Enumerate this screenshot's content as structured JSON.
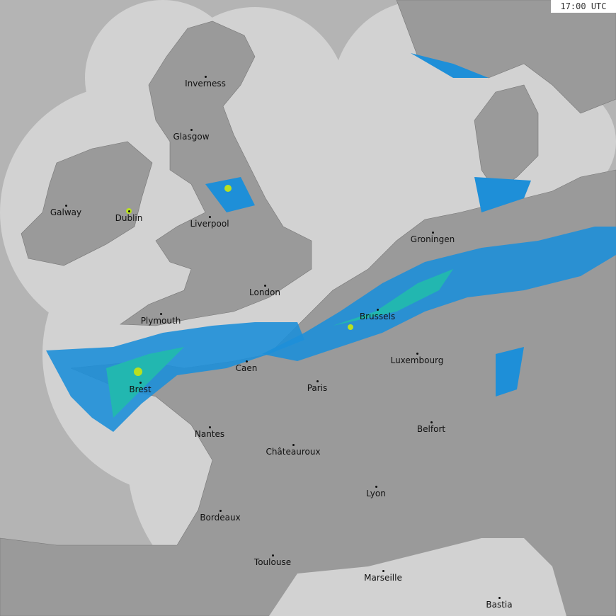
{
  "timestamp": "17:00 UTC",
  "colors": {
    "sea_in_coverage": "#d2d2d2",
    "sea_out_coverage": "#b4b4b4",
    "land": "#9a9a9a",
    "rain_light": "#1e8fd8",
    "rain_moderate": "#22b7b0",
    "rain_heavy": "#b8e020"
  },
  "cities": [
    {
      "name": "Inverness"
    },
    {
      "name": "Glasgow"
    },
    {
      "name": "Galway"
    },
    {
      "name": "Dublin"
    },
    {
      "name": "Liverpool"
    },
    {
      "name": "London"
    },
    {
      "name": "Plymouth"
    },
    {
      "name": "Groningen"
    },
    {
      "name": "Brussels"
    },
    {
      "name": "Caen"
    },
    {
      "name": "Brest"
    },
    {
      "name": "Paris"
    },
    {
      "name": "Luxembourg"
    },
    {
      "name": "Nantes"
    },
    {
      "name": "Châteauroux"
    },
    {
      "name": "Belfort"
    },
    {
      "name": "Lyon"
    },
    {
      "name": "Bordeaux"
    },
    {
      "name": "Toulouse"
    },
    {
      "name": "Marseille"
    },
    {
      "name": "Bastia"
    }
  ]
}
